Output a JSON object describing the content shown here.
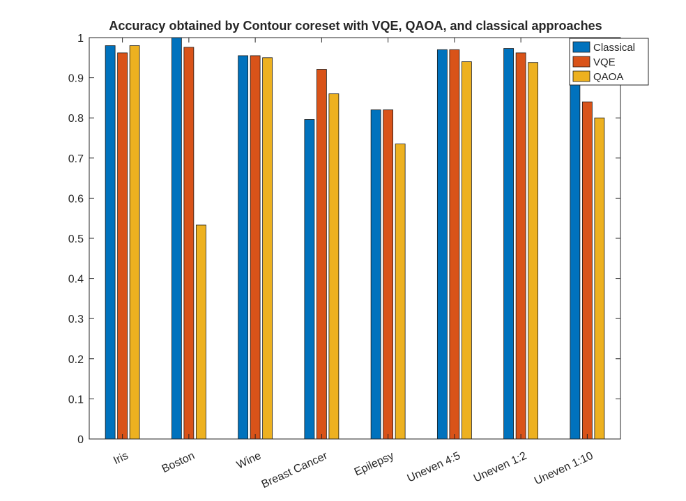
{
  "chart_data": {
    "type": "bar",
    "title": "Accuracy obtained by Contour coreset with VQE, QAOA, and classical approaches",
    "xlabel": "",
    "ylabel": "",
    "categories": [
      "Iris",
      "Boston",
      "Wine",
      "Breast Cancer",
      "Epilepsy",
      "Uneven 4:5",
      "Uneven 1:2",
      "Uneven 1:10"
    ],
    "series": [
      {
        "name": "Classical",
        "color": "#0072BD",
        "values": [
          0.98,
          1.0,
          0.955,
          0.796,
          0.82,
          0.97,
          0.973,
          0.95
        ]
      },
      {
        "name": "VQE",
        "color": "#D95319",
        "values": [
          0.962,
          0.976,
          0.955,
          0.921,
          0.82,
          0.97,
          0.962,
          0.84
        ]
      },
      {
        "name": "QAOA",
        "color": "#EDB120",
        "values": [
          0.98,
          0.533,
          0.95,
          0.86,
          0.735,
          0.94,
          0.938,
          0.8
        ]
      }
    ],
    "ylim": [
      0,
      1
    ],
    "yticks": [
      "0",
      "0.1",
      "0.2",
      "0.3",
      "0.4",
      "0.5",
      "0.6",
      "0.7",
      "0.8",
      "0.9",
      "1"
    ],
    "grid": false,
    "legend_position": "top-right"
  }
}
